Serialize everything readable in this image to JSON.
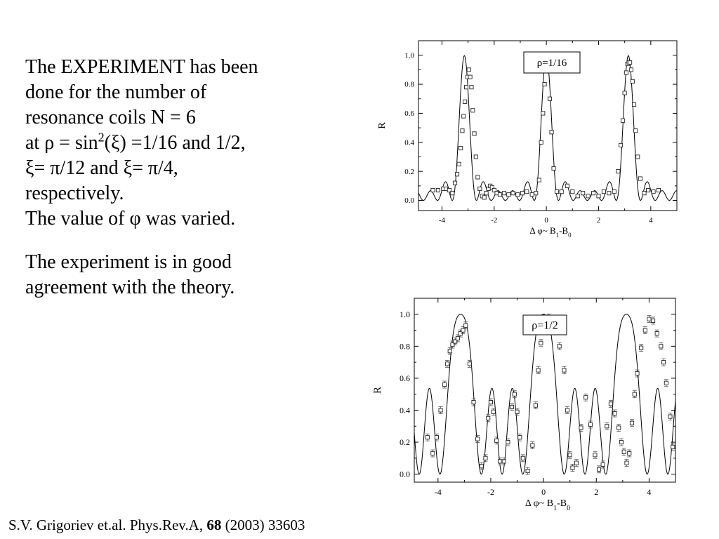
{
  "text": {
    "para1": [
      "The EXPERIMENT has been",
      "done for the  number of",
      "resonance coils N = 6",
      {
        "pre": "at  ρ = sin",
        "sup": "2",
        "post": "(ξ) =1/16 and 1/2,"
      },
      "ξ= π/12 and ξ= π/4,",
      "respectively.",
      "The value of φ was varied."
    ],
    "para2": [
      "The experiment is in good",
      "agreement with the theory."
    ]
  },
  "citation": {
    "prefix": "S.V. Grigoriev et.al. Phys.Rev.A,  ",
    "volume": "68",
    "suffix": " (2003) 33603"
  },
  "chart_data": [
    {
      "type": "scatter",
      "annotation": "ρ=1/16",
      "ylabel": "R",
      "xlabel": {
        "main": "Δ φ~ B",
        "sub1": "1",
        "mid": "-B",
        "sub2": "0"
      },
      "xlim": [
        -4.9,
        5.0
      ],
      "ylim": [
        -0.07,
        1.1
      ],
      "xticks": [
        -4,
        -2,
        0,
        2,
        4
      ],
      "yticks": [
        0.0,
        0.2,
        0.4,
        0.6,
        0.8,
        1.0
      ],
      "xtick_labels": [
        "-4",
        "-2",
        "0",
        "2",
        "4"
      ],
      "ytick_labels": [
        "0.0",
        "0.2",
        "0.4",
        "0.6",
        "0.8",
        "1.0"
      ],
      "N": 6,
      "rho": 0.0625,
      "x_shift": 0.0,
      "curve": "theory",
      "series": [
        {
          "kind": "experiment",
          "marker": "open-square",
          "x": [
            -4.35,
            -4.15,
            -3.95,
            -3.85,
            -3.72,
            -3.6,
            -3.5,
            -3.42,
            -3.35,
            -3.28,
            -3.22,
            -3.17,
            -3.12,
            -3.07,
            -3.02,
            -2.97,
            -2.92,
            -2.87,
            -2.82,
            -2.76,
            -2.7,
            -2.63,
            -2.55,
            -2.46,
            -2.38,
            -2.3,
            -2.22,
            -2.15,
            -2.08,
            -2.0,
            -1.9,
            -1.78,
            -1.62,
            -1.45,
            -1.28,
            -1.1,
            -0.92,
            -0.75,
            -0.55,
            -0.4,
            -0.28,
            -0.2,
            -0.13,
            -0.07,
            -0.02,
            0.02,
            0.07,
            0.13,
            0.2,
            0.28,
            0.4,
            0.58,
            0.8,
            1.0,
            1.2,
            1.4,
            1.6,
            1.8,
            2.0,
            2.2,
            2.4,
            2.6,
            2.75,
            2.85,
            2.93,
            3.0,
            3.06,
            3.11,
            3.16,
            3.2,
            3.25,
            3.3,
            3.36,
            3.42,
            3.5,
            3.6,
            3.75,
            3.9,
            4.1,
            4.3
          ],
          "y": [
            0.07,
            0.07,
            0.08,
            0.08,
            0.07,
            0.05,
            0.12,
            0.18,
            0.25,
            0.36,
            0.48,
            0.58,
            0.68,
            0.78,
            0.85,
            0.9,
            0.85,
            0.78,
            0.62,
            0.46,
            0.3,
            0.16,
            0.08,
            0.03,
            0.02,
            0.05,
            0.08,
            0.1,
            0.09,
            0.07,
            0.05,
            0.04,
            0.05,
            0.04,
            0.05,
            0.04,
            0.05,
            0.06,
            0.04,
            0.05,
            0.14,
            0.4,
            0.6,
            0.8,
            0.97,
            0.97,
            0.9,
            0.7,
            0.47,
            0.22,
            0.06,
            0.06,
            0.1,
            0.06,
            0.03,
            0.05,
            0.03,
            0.05,
            0.03,
            0.06,
            0.05,
            0.06,
            0.2,
            0.38,
            0.55,
            0.74,
            0.88,
            0.94,
            0.95,
            0.95,
            0.9,
            0.82,
            0.66,
            0.48,
            0.3,
            0.15,
            0.05,
            0.07,
            0.06,
            0.07
          ]
        }
      ]
    },
    {
      "type": "scatter",
      "annotation": "ρ=1/2",
      "ylabel": "R",
      "xlabel": {
        "main": "Δ φ~ B",
        "sub1": "1",
        "mid": "-B",
        "sub2": "0"
      },
      "xlim": [
        -4.9,
        5.0
      ],
      "ylim": [
        -0.05,
        1.1
      ],
      "xticks": [
        -4,
        -2,
        0,
        2,
        4
      ],
      "yticks": [
        0.0,
        0.2,
        0.4,
        0.6,
        0.8,
        1.0
      ],
      "xtick_labels": [
        "-4",
        "-2",
        "0",
        "2",
        "4"
      ],
      "ytick_labels": [
        "0.0",
        "0.2",
        "0.4",
        "0.6",
        "0.8",
        "1.0"
      ],
      "N": 6,
      "rho": 0.5,
      "x_shift": 0.0,
      "curve": "theory",
      "series": [
        {
          "kind": "experiment",
          "marker": "open-square-errorbar",
          "x": [
            -4.4,
            -4.2,
            -4.05,
            -3.9,
            -3.75,
            -3.65,
            -3.55,
            -3.45,
            -3.35,
            -3.25,
            -3.15,
            -3.05,
            -2.95,
            -2.8,
            -2.65,
            -2.5,
            -2.35,
            -2.2,
            -2.1,
            -2.0,
            -1.9,
            -1.78,
            -1.65,
            -1.5,
            -1.35,
            -1.2,
            -1.1,
            -1.0,
            -0.9,
            -0.78,
            -0.6,
            -0.42,
            -0.3,
            -0.2,
            -0.1,
            0.0,
            0.1,
            0.2,
            0.3,
            0.42,
            0.6,
            0.78,
            0.9,
            1.0,
            1.1,
            1.25,
            1.42,
            1.6,
            1.78,
            1.95,
            2.1,
            2.25,
            2.4,
            2.55,
            2.7,
            2.85,
            2.95,
            3.05,
            3.15,
            3.25,
            3.35,
            3.45,
            3.55,
            3.7,
            3.85,
            4.0,
            4.15,
            4.3,
            4.45,
            4.55,
            4.65,
            4.8,
            4.9
          ],
          "y": [
            0.23,
            0.13,
            0.23,
            0.4,
            0.56,
            0.69,
            0.77,
            0.81,
            0.83,
            0.85,
            0.88,
            0.9,
            0.93,
            0.69,
            0.45,
            0.22,
            0.05,
            0.1,
            0.35,
            0.45,
            0.39,
            0.21,
            0.08,
            0.08,
            0.2,
            0.42,
            0.5,
            0.39,
            0.23,
            0.1,
            0.02,
            0.18,
            0.43,
            0.65,
            0.82,
            0.93,
            0.97,
            0.98,
            0.97,
            0.95,
            0.8,
            0.65,
            0.4,
            0.12,
            0.04,
            0.07,
            0.29,
            0.48,
            0.31,
            0.12,
            0.03,
            0.06,
            0.3,
            0.44,
            0.38,
            0.29,
            0.2,
            0.14,
            0.07,
            0.13,
            0.32,
            0.5,
            0.63,
            0.79,
            0.9,
            0.97,
            0.96,
            0.88,
            0.8,
            0.7,
            0.57,
            0.36,
            0.17
          ]
        }
      ]
    }
  ]
}
